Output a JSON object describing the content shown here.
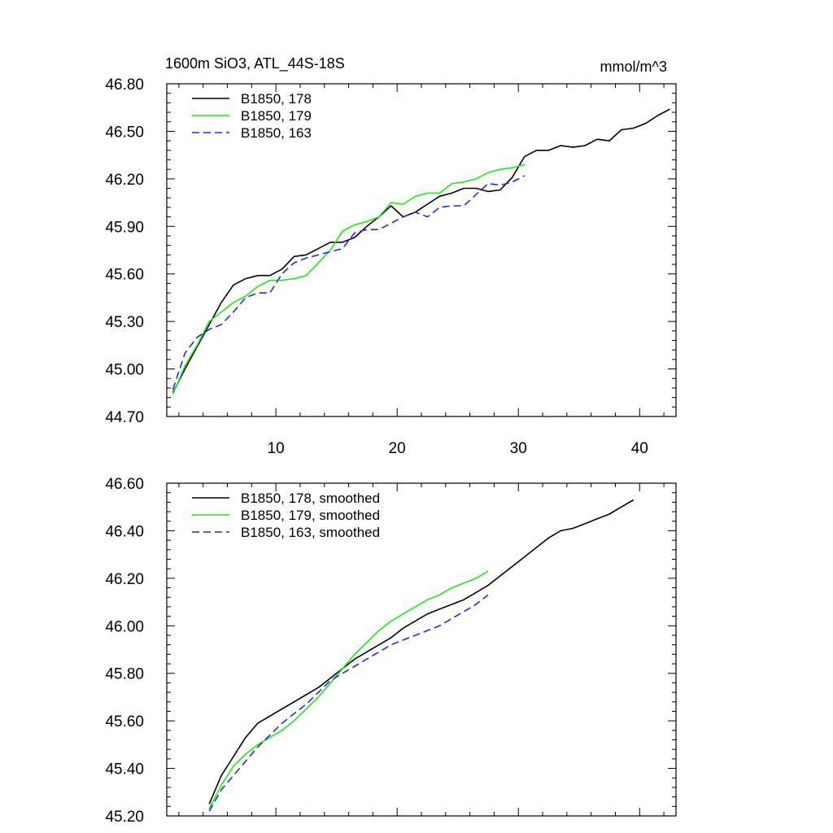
{
  "chart_data": [
    {
      "type": "line",
      "title": "1600m SiO3, ATL_44S-18S",
      "units": "mmol/m^3",
      "xlim": [
        1,
        43
      ],
      "ylim": [
        44.7,
        46.8
      ],
      "xticks": [
        10,
        20,
        30,
        40
      ],
      "xtick_labels": [
        "10",
        "20",
        "30",
        "40"
      ],
      "yticks": [
        44.7,
        45.0,
        45.3,
        45.6,
        45.9,
        46.2,
        46.5,
        46.8
      ],
      "ytick_labels": [
        "44.70",
        "45.00",
        "45.30",
        "45.60",
        "45.90",
        "46.20",
        "46.50",
        "46.80"
      ],
      "legend_position": "top-left",
      "series": [
        {
          "name": "B1850, 178",
          "color": "#000000",
          "dash": "solid",
          "x": [
            1.5,
            2.5,
            3.5,
            4.5,
            5.5,
            6.5,
            7.5,
            8.5,
            9.5,
            10.5,
            11.5,
            12.5,
            13.5,
            14.5,
            15.5,
            16.5,
            17.5,
            18.5,
            19.5,
            20.5,
            21.5,
            22.5,
            23.5,
            24.5,
            25.5,
            26.5,
            27.5,
            28.5,
            29.5,
            30.5,
            31.5,
            32.5,
            33.5,
            34.5,
            35.5,
            36.5,
            37.5,
            38.5,
            39.5,
            40.5,
            41.5,
            42.5
          ],
          "y": [
            44.85,
            45.0,
            45.14,
            45.28,
            45.42,
            45.53,
            45.57,
            45.59,
            45.59,
            45.63,
            45.71,
            45.72,
            45.76,
            45.8,
            45.8,
            45.83,
            45.9,
            45.96,
            46.03,
            45.96,
            45.99,
            46.04,
            46.09,
            46.11,
            46.14,
            46.14,
            46.12,
            46.13,
            46.21,
            46.34,
            46.38,
            46.38,
            46.41,
            46.4,
            46.41,
            46.45,
            46.44,
            46.51,
            46.52,
            46.55,
            46.6,
            46.64
          ]
        },
        {
          "name": "B1850, 179",
          "color": "#22e622",
          "dash": "solid",
          "x": [
            1.5,
            2.5,
            3.5,
            4.5,
            5.5,
            6.5,
            7.5,
            8.5,
            9.5,
            10.5,
            11.5,
            12.5,
            13.5,
            14.5,
            15.5,
            16.5,
            17.5,
            18.5,
            19.5,
            20.5,
            21.5,
            22.5,
            23.5,
            24.5,
            25.5,
            26.5,
            27.5,
            28.5,
            29.5,
            30.5
          ],
          "y": [
            44.84,
            45.02,
            45.15,
            45.3,
            45.36,
            45.42,
            45.46,
            45.52,
            45.56,
            45.56,
            45.57,
            45.59,
            45.67,
            45.75,
            45.87,
            45.91,
            45.93,
            45.96,
            46.05,
            46.04,
            46.09,
            46.11,
            46.11,
            46.17,
            46.18,
            46.2,
            46.24,
            46.26,
            46.27,
            46.29
          ]
        },
        {
          "name": "B1850, 163",
          "color": "#1f2fd6",
          "dash": "dashed",
          "x": [
            1.5,
            2.5,
            3.5,
            4.5,
            5.5,
            6.5,
            7.5,
            8.5,
            9.5,
            10.5,
            11.5,
            12.5,
            13.5,
            14.5,
            15.5,
            16.5,
            17.5,
            18.5,
            19.5,
            20.5,
            21.5,
            22.5,
            23.5,
            24.5,
            25.5,
            26.5,
            27.5,
            28.5,
            29.5,
            30.5
          ],
          "y": [
            44.87,
            45.1,
            45.2,
            45.25,
            45.28,
            45.36,
            45.45,
            45.48,
            45.48,
            45.6,
            45.67,
            45.7,
            45.72,
            45.74,
            45.76,
            45.86,
            45.88,
            45.88,
            45.92,
            45.96,
            45.99,
            45.96,
            46.02,
            46.03,
            46.03,
            46.1,
            46.17,
            46.16,
            46.18,
            46.22
          ]
        }
      ]
    },
    {
      "type": "line",
      "xlim": [
        1,
        43
      ],
      "ylim": [
        45.2,
        46.6
      ],
      "xticks": [
        10,
        20,
        30,
        40
      ],
      "yticks": [
        45.2,
        45.4,
        45.6,
        45.8,
        46.0,
        46.2,
        46.4,
        46.6
      ],
      "ytick_labels": [
        "45.20",
        "45.40",
        "45.60",
        "45.80",
        "46.00",
        "46.20",
        "46.40",
        "46.60"
      ],
      "legend_position": "top-left",
      "series": [
        {
          "name": "B1850, 178, smoothed",
          "color": "#000000",
          "dash": "solid",
          "x": [
            4.5,
            5.5,
            6.5,
            7.5,
            8.5,
            9.5,
            10.5,
            11.5,
            12.5,
            13.5,
            14.5,
            15.5,
            16.5,
            17.5,
            18.5,
            19.5,
            20.5,
            21.5,
            22.5,
            23.5,
            24.5,
            25.5,
            26.5,
            27.5,
            28.5,
            29.5,
            30.5,
            31.5,
            32.5,
            33.5,
            34.5,
            35.5,
            36.5,
            37.5,
            38.5,
            39.5
          ],
          "y": [
            45.25,
            45.37,
            45.45,
            45.53,
            45.59,
            45.62,
            45.65,
            45.68,
            45.71,
            45.74,
            45.78,
            45.82,
            45.86,
            45.89,
            45.92,
            45.95,
            45.99,
            46.02,
            46.05,
            46.07,
            46.09,
            46.11,
            46.14,
            46.17,
            46.21,
            46.25,
            46.29,
            46.33,
            46.37,
            46.4,
            46.41,
            46.43,
            46.45,
            46.47,
            46.5,
            46.53
          ]
        },
        {
          "name": "B1850, 179, smoothed",
          "color": "#22e622",
          "dash": "solid",
          "x": [
            4.5,
            5.5,
            6.5,
            7.5,
            8.5,
            9.5,
            10.5,
            11.5,
            12.5,
            13.5,
            14.5,
            15.5,
            16.5,
            17.5,
            18.5,
            19.5,
            20.5,
            21.5,
            22.5,
            23.5,
            24.5,
            25.5,
            26.5,
            27.5
          ],
          "y": [
            45.23,
            45.33,
            45.41,
            45.46,
            45.5,
            45.53,
            45.56,
            45.6,
            45.65,
            45.7,
            45.76,
            45.82,
            45.88,
            45.93,
            45.98,
            46.02,
            46.05,
            46.08,
            46.11,
            46.13,
            46.16,
            46.18,
            46.2,
            46.23
          ]
        },
        {
          "name": "B1850, 163, smoothed",
          "color": "#1f2fd6",
          "dash": "dashed",
          "x": [
            4.5,
            5.5,
            6.5,
            7.5,
            8.5,
            9.5,
            10.5,
            11.5,
            12.5,
            13.5,
            14.5,
            15.5,
            16.5,
            17.5,
            18.5,
            19.5,
            20.5,
            21.5,
            22.5,
            23.5,
            24.5,
            25.5,
            26.5,
            27.5
          ],
          "y": [
            45.22,
            45.31,
            45.37,
            45.43,
            45.49,
            45.54,
            45.59,
            45.63,
            45.67,
            45.72,
            45.77,
            45.8,
            45.83,
            45.86,
            45.89,
            45.92,
            45.94,
            45.96,
            45.98,
            46.0,
            46.03,
            46.06,
            46.09,
            46.13
          ]
        }
      ]
    }
  ]
}
